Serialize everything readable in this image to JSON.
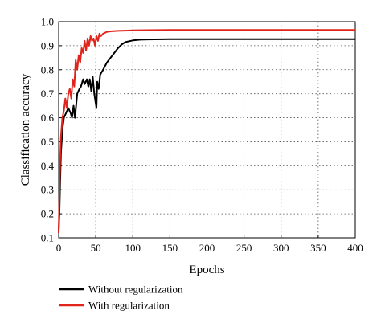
{
  "chart_data": {
    "type": "line",
    "xlabel": "Epochs",
    "ylabel": "Classification accuracy",
    "xlim": [
      0,
      400
    ],
    "ylim": [
      0.1,
      1.0
    ],
    "xticks": [
      "0",
      "50",
      "100",
      "150",
      "200",
      "250",
      "300",
      "350",
      "400"
    ],
    "yticks": [
      "0.1",
      "0.2",
      "0.3",
      "0.4",
      "0.5",
      "0.6",
      "0.7",
      "0.8",
      "0.9",
      "1.0"
    ],
    "grid": true,
    "legend_position": "bottom-left",
    "series": [
      {
        "name": "Without regularization",
        "color": "#000000",
        "x": [
          0,
          1,
          2,
          3,
          4,
          5,
          7,
          10,
          13,
          16,
          18,
          20,
          22,
          25,
          28,
          30,
          33,
          35,
          38,
          40,
          42,
          44,
          46,
          48,
          50,
          51,
          52,
          54,
          56,
          60,
          65,
          70,
          75,
          80,
          85,
          90,
          100,
          110,
          120,
          150,
          200,
          250,
          300,
          350,
          400
        ],
        "y": [
          0.13,
          0.2,
          0.33,
          0.45,
          0.5,
          0.55,
          0.6,
          0.62,
          0.64,
          0.62,
          0.6,
          0.65,
          0.6,
          0.7,
          0.72,
          0.73,
          0.76,
          0.74,
          0.76,
          0.73,
          0.76,
          0.71,
          0.77,
          0.7,
          0.66,
          0.64,
          0.75,
          0.72,
          0.78,
          0.8,
          0.83,
          0.85,
          0.87,
          0.89,
          0.905,
          0.915,
          0.922,
          0.925,
          0.926,
          0.927,
          0.927,
          0.927,
          0.927,
          0.927,
          0.927
        ]
      },
      {
        "name": "With regularization",
        "color": "#e0241b",
        "x": [
          0,
          1,
          2,
          3,
          4,
          5,
          7,
          9,
          11,
          13,
          15,
          17,
          19,
          21,
          23,
          25,
          27,
          29,
          31,
          33,
          35,
          37,
          39,
          41,
          43,
          45,
          47,
          49,
          51,
          53,
          55,
          57,
          60,
          65,
          70,
          80,
          90,
          100,
          120,
          150,
          200,
          250,
          300,
          350,
          400
        ],
        "y": [
          0.12,
          0.28,
          0.42,
          0.52,
          0.56,
          0.6,
          0.63,
          0.68,
          0.64,
          0.7,
          0.72,
          0.68,
          0.76,
          0.73,
          0.84,
          0.8,
          0.86,
          0.83,
          0.89,
          0.87,
          0.92,
          0.88,
          0.93,
          0.9,
          0.94,
          0.92,
          0.93,
          0.9,
          0.94,
          0.92,
          0.95,
          0.94,
          0.95,
          0.958,
          0.96,
          0.962,
          0.963,
          0.964,
          0.965,
          0.966,
          0.966,
          0.966,
          0.966,
          0.966,
          0.966
        ]
      }
    ]
  }
}
